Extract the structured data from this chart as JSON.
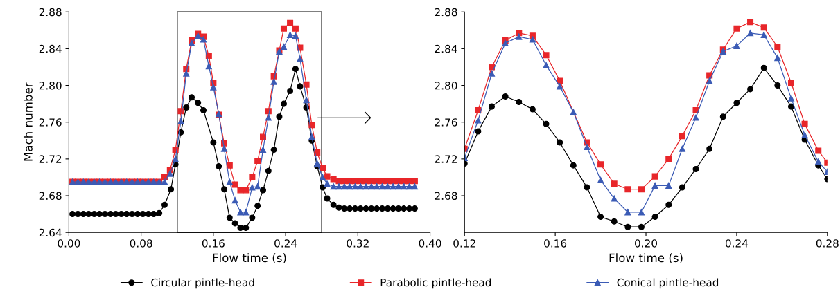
{
  "chart_data": [
    {
      "type": "line",
      "xlabel": "Flow time (s)",
      "ylabel": "Mach number",
      "xlim": [
        0,
        0.4
      ],
      "ylim": [
        2.64,
        2.88
      ],
      "xticks": [
        {
          "value": 0,
          "label": "0.00"
        },
        {
          "value": 0.08,
          "label": "0.08"
        },
        {
          "value": 0.16,
          "label": "0.16"
        },
        {
          "value": 0.24,
          "label": "0.24"
        },
        {
          "value": 0.32,
          "label": "0.32"
        },
        {
          "value": 0.4,
          "label": "0.40"
        }
      ],
      "yticks": [
        2.64,
        2.68,
        2.72,
        2.76,
        {
          "value": 2.8,
          "label": "2.80"
        },
        2.84,
        2.88
      ],
      "grid": false,
      "legend": "bottom",
      "series": [
        {
          "name": "Circular pintle-head",
          "color": "#000000",
          "marker": "circle",
          "x": [
            0.004,
            0.01,
            0.016,
            0.022,
            0.028,
            0.034,
            0.04,
            0.046,
            0.052,
            0.058,
            0.064,
            0.07,
            0.076,
            0.082,
            0.088,
            0.094,
            0.1,
            0.106,
            0.113,
            0.118,
            0.124,
            0.13,
            0.136,
            0.143,
            0.149,
            0.16,
            0.166,
            0.172,
            0.178,
            0.184,
            0.19,
            0.196,
            0.203,
            0.209,
            0.215,
            0.221,
            0.227,
            0.233,
            0.238,
            0.245,
            0.251,
            0.256,
            0.263,
            0.269,
            0.275,
            0.281,
            0.286,
            0.293,
            0.299,
            0.305,
            0.311,
            0.317,
            0.323,
            0.329,
            0.335,
            0.341,
            0.347,
            0.353,
            0.359,
            0.365,
            0.371,
            0.377,
            0.383
          ],
          "values": [
            2.66,
            2.66,
            2.66,
            2.66,
            2.66,
            2.66,
            2.66,
            2.66,
            2.66,
            2.66,
            2.66,
            2.66,
            2.66,
            2.66,
            2.66,
            2.66,
            2.661,
            2.67,
            2.687,
            2.714,
            2.749,
            2.776,
            2.787,
            2.781,
            2.773,
            2.738,
            2.712,
            2.687,
            2.656,
            2.65,
            2.645,
            2.645,
            2.656,
            2.669,
            2.686,
            2.707,
            2.73,
            2.766,
            2.78,
            2.794,
            2.818,
            2.799,
            2.776,
            2.74,
            2.712,
            2.689,
            2.677,
            2.67,
            2.667,
            2.666,
            2.666,
            2.666,
            2.666,
            2.666,
            2.666,
            2.666,
            2.666,
            2.666,
            2.666,
            2.666,
            2.666,
            2.666,
            2.666
          ]
        },
        {
          "name": "Parabolic pintle-head",
          "color": "#e8262a",
          "marker": "square",
          "x": [
            0.004,
            0.01,
            0.016,
            0.022,
            0.028,
            0.034,
            0.04,
            0.046,
            0.052,
            0.058,
            0.064,
            0.07,
            0.076,
            0.082,
            0.088,
            0.094,
            0.1,
            0.106,
            0.112,
            0.118,
            0.124,
            0.13,
            0.136,
            0.143,
            0.149,
            0.155,
            0.16,
            0.166,
            0.172,
            0.178,
            0.184,
            0.19,
            0.196,
            0.203,
            0.209,
            0.215,
            0.221,
            0.227,
            0.233,
            0.238,
            0.245,
            0.251,
            0.256,
            0.263,
            0.269,
            0.275,
            0.281,
            0.286,
            0.293,
            0.299,
            0.305,
            0.311,
            0.317,
            0.323,
            0.329,
            0.335,
            0.341,
            0.347,
            0.353,
            0.359,
            0.365,
            0.371,
            0.377,
            0.383
          ],
          "values": [
            2.695,
            2.695,
            2.695,
            2.695,
            2.695,
            2.695,
            2.695,
            2.695,
            2.695,
            2.695,
            2.695,
            2.695,
            2.695,
            2.695,
            2.695,
            2.695,
            2.695,
            2.7,
            2.708,
            2.73,
            2.772,
            2.818,
            2.849,
            2.856,
            2.853,
            2.832,
            2.803,
            2.768,
            2.737,
            2.713,
            2.692,
            2.686,
            2.686,
            2.7,
            2.718,
            2.744,
            2.772,
            2.81,
            2.838,
            2.862,
            2.868,
            2.862,
            2.841,
            2.801,
            2.757,
            2.727,
            2.71,
            2.701,
            2.698,
            2.696,
            2.696,
            2.696,
            2.696,
            2.696,
            2.696,
            2.696,
            2.696,
            2.696,
            2.696,
            2.696,
            2.696,
            2.696,
            2.696,
            2.696
          ]
        },
        {
          "name": "Conical pintle-head",
          "color": "#3b5bb5",
          "marker": "triangle",
          "x": [
            0.004,
            0.01,
            0.016,
            0.022,
            0.028,
            0.034,
            0.04,
            0.046,
            0.052,
            0.058,
            0.064,
            0.07,
            0.076,
            0.082,
            0.088,
            0.094,
            0.1,
            0.106,
            0.112,
            0.118,
            0.124,
            0.13,
            0.136,
            0.143,
            0.149,
            0.155,
            0.16,
            0.166,
            0.172,
            0.178,
            0.184,
            0.19,
            0.196,
            0.203,
            0.209,
            0.215,
            0.221,
            0.227,
            0.233,
            0.238,
            0.245,
            0.251,
            0.256,
            0.263,
            0.269,
            0.275,
            0.281,
            0.286,
            0.293,
            0.299,
            0.305,
            0.311,
            0.317,
            0.323,
            0.329,
            0.335,
            0.341,
            0.347,
            0.353,
            0.359,
            0.365,
            0.371,
            0.377,
            0.383
          ],
          "values": [
            2.695,
            2.695,
            2.695,
            2.695,
            2.695,
            2.695,
            2.695,
            2.695,
            2.695,
            2.695,
            2.695,
            2.695,
            2.695,
            2.695,
            2.695,
            2.695,
            2.695,
            2.695,
            2.704,
            2.72,
            2.761,
            2.813,
            2.846,
            2.854,
            2.85,
            2.821,
            2.798,
            2.769,
            2.731,
            2.695,
            2.675,
            2.662,
            2.662,
            2.689,
            2.69,
            2.73,
            2.765,
            2.804,
            2.837,
            2.842,
            2.855,
            2.854,
            2.829,
            2.784,
            2.744,
            2.715,
            2.7,
            2.693,
            2.69,
            2.69,
            2.69,
            2.69,
            2.69,
            2.69,
            2.69,
            2.69,
            2.69,
            2.69,
            2.69,
            2.69,
            2.69,
            2.69,
            2.69,
            2.69
          ]
        }
      ]
    },
    {
      "type": "line",
      "xlabel": "Flow time (s)",
      "xlim": [
        0.12,
        0.28
      ],
      "ylim": [
        2.64,
        2.88
      ],
      "xticks": [
        0.12,
        0.16,
        {
          "value": 0.2,
          "label": "0.20"
        },
        0.24,
        0.28
      ],
      "yticks": [
        2.68,
        2.72,
        2.76,
        {
          "value": 2.8,
          "label": "2.80"
        },
        2.84,
        2.88
      ],
      "grid": false,
      "series": [
        {
          "color": "#000000",
          "marker": "circle",
          "x": [
            0.12,
            0.126,
            0.132,
            0.138,
            0.144,
            0.15,
            0.156,
            0.162,
            0.168,
            0.174,
            0.18,
            0.186,
            0.192,
            0.198,
            0.204,
            0.21,
            0.216,
            0.222,
            0.228,
            0.234,
            0.24,
            0.246,
            0.252,
            0.258,
            0.264,
            0.27,
            0.276,
            0.28
          ],
          "values": [
            2.715,
            2.75,
            2.777,
            2.788,
            2.782,
            2.774,
            2.758,
            2.738,
            2.713,
            2.689,
            2.657,
            2.652,
            2.646,
            2.646,
            2.657,
            2.67,
            2.689,
            2.709,
            2.731,
            2.766,
            2.781,
            2.796,
            2.819,
            2.8,
            2.777,
            2.741,
            2.713,
            2.698
          ]
        },
        {
          "color": "#e8262a",
          "marker": "square",
          "x": [
            0.12,
            0.126,
            0.132,
            0.138,
            0.144,
            0.15,
            0.156,
            0.162,
            0.174,
            0.18,
            0.186,
            0.192,
            0.198,
            0.204,
            0.21,
            0.216,
            0.222,
            0.228,
            0.234,
            0.24,
            0.246,
            0.252,
            0.258,
            0.264,
            0.27,
            0.276,
            0.28
          ],
          "values": [
            2.731,
            2.773,
            2.82,
            2.849,
            2.857,
            2.854,
            2.833,
            2.805,
            2.738,
            2.714,
            2.693,
            2.687,
            2.687,
            2.701,
            2.72,
            2.745,
            2.773,
            2.811,
            2.839,
            2.862,
            2.869,
            2.863,
            2.842,
            2.803,
            2.758,
            2.729,
            2.716
          ]
        },
        {
          "color": "#3b5bb5",
          "marker": "triangle",
          "x": [
            0.12,
            0.126,
            0.132,
            0.138,
            0.144,
            0.15,
            0.156,
            0.162,
            0.168,
            0.174,
            0.18,
            0.186,
            0.192,
            0.198,
            0.204,
            0.21,
            0.216,
            0.222,
            0.228,
            0.234,
            0.24,
            0.246,
            0.252,
            0.258,
            0.264,
            0.27,
            0.276,
            0.28
          ],
          "values": [
            2.721,
            2.762,
            2.813,
            2.846,
            2.853,
            2.85,
            2.822,
            2.799,
            2.771,
            2.733,
            2.697,
            2.677,
            2.662,
            2.662,
            2.691,
            2.691,
            2.731,
            2.765,
            2.805,
            2.837,
            2.843,
            2.857,
            2.855,
            2.83,
            2.786,
            2.746,
            2.717,
            2.706
          ]
        }
      ]
    }
  ]
}
